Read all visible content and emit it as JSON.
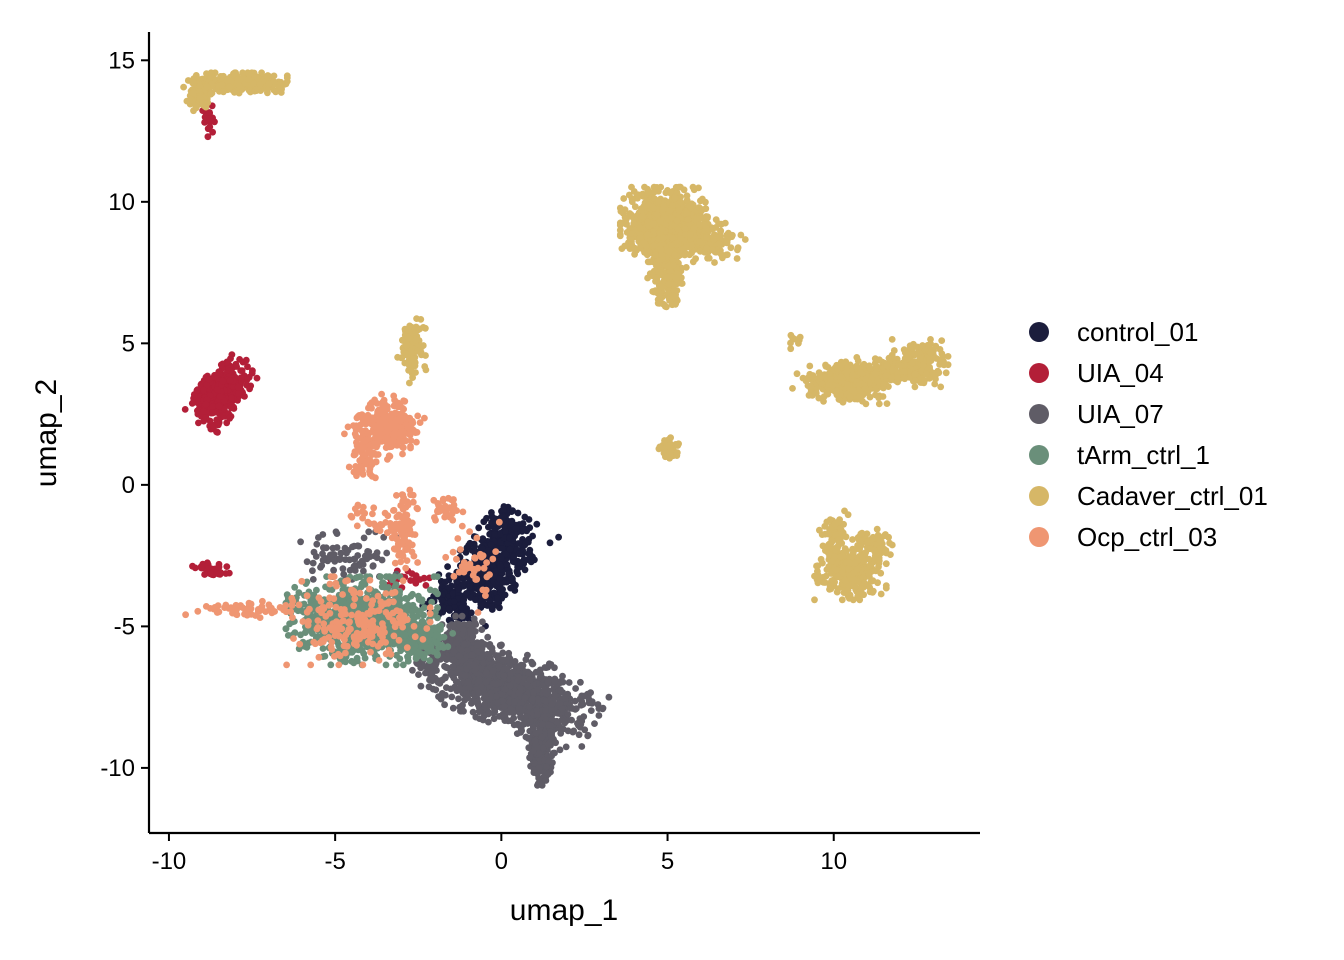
{
  "chart_data": {
    "type": "scatter",
    "title": "",
    "xlabel": "umap_1",
    "ylabel": "umap_2",
    "xlim": [
      -10.6,
      14.4
    ],
    "ylim": [
      -12.3,
      16
    ],
    "xticks": [
      -10,
      -5,
      0,
      5,
      10
    ],
    "xtick_labels": [
      "-10",
      "-5",
      "0",
      "5",
      "10"
    ],
    "yticks": [
      -10,
      -5,
      0,
      5,
      10,
      15
    ],
    "ytick_labels": [
      "-10",
      "-5",
      "0",
      "5",
      "10",
      "15"
    ],
    "grid": false,
    "legend_position": "right",
    "series": [
      {
        "name": "control_01",
        "color": "#1b1d3c",
        "clusters": [
          {
            "cx": -0.4,
            "cy": -3.0,
            "sx": 0.45,
            "sy": 0.9,
            "n": 520,
            "rot": -35
          },
          {
            "cx": 0.1,
            "cy": -1.3,
            "sx": 0.25,
            "sy": 0.3,
            "n": 70,
            "rot": 0
          },
          {
            "cx": -1.5,
            "cy": -4.0,
            "sx": 0.35,
            "sy": 0.35,
            "n": 90,
            "rot": 0
          }
        ]
      },
      {
        "name": "UIA_04",
        "color": "#b31f38",
        "clusters": [
          {
            "cx": -8.4,
            "cy": 3.3,
            "sx": 0.28,
            "sy": 0.55,
            "n": 420,
            "rot": -30
          },
          {
            "cx": -8.8,
            "cy": 12.9,
            "sx": 0.1,
            "sy": 0.25,
            "n": 25,
            "rot": 0
          },
          {
            "cx": -8.7,
            "cy": -3.0,
            "sx": 0.25,
            "sy": 0.12,
            "n": 40,
            "rot": -20
          },
          {
            "cx": -3.0,
            "cy": -3.3,
            "sx": 0.35,
            "sy": 0.2,
            "n": 25,
            "rot": 0
          }
        ]
      },
      {
        "name": "UIA_07",
        "color": "#5f5c66",
        "clusters": [
          {
            "cx": 0.2,
            "cy": -7.2,
            "sx": 1.2,
            "sy": 0.55,
            "n": 1100,
            "rot": -25
          },
          {
            "cx": 1.2,
            "cy": -9.3,
            "sx": 0.18,
            "sy": 0.55,
            "n": 220,
            "rot": 0
          },
          {
            "cx": -1.3,
            "cy": -5.6,
            "sx": 0.4,
            "sy": 0.4,
            "n": 200,
            "rot": 0
          },
          {
            "cx": -4.6,
            "cy": -2.5,
            "sx": 0.6,
            "sy": 0.35,
            "n": 80,
            "rot": 0
          }
        ]
      },
      {
        "name": "tArm_ctrl_1",
        "color": "#6a8f7a",
        "clusters": [
          {
            "cx": -4.2,
            "cy": -4.8,
            "sx": 0.95,
            "sy": 0.65,
            "n": 900,
            "rot": 0
          },
          {
            "cx": -2.4,
            "cy": -5.5,
            "sx": 0.4,
            "sy": 0.35,
            "n": 120,
            "rot": 0
          }
        ]
      },
      {
        "name": "Cadaver_ctrl_01",
        "color": "#d6b767",
        "clusters": [
          {
            "cx": 4.9,
            "cy": 9.2,
            "sx": 0.55,
            "sy": 0.55,
            "n": 950,
            "rot": 0
          },
          {
            "cx": 5.0,
            "cy": 7.4,
            "sx": 0.25,
            "sy": 0.6,
            "n": 180,
            "rot": 0
          },
          {
            "cx": 6.2,
            "cy": 8.7,
            "sx": 0.45,
            "sy": 0.3,
            "n": 150,
            "rot": -20
          },
          {
            "cx": 10.6,
            "cy": 3.7,
            "sx": 0.55,
            "sy": 0.35,
            "n": 320,
            "rot": 0
          },
          {
            "cx": 12.6,
            "cy": 4.3,
            "sx": 0.35,
            "sy": 0.35,
            "n": 180,
            "rot": 0
          },
          {
            "cx": 11.6,
            "cy": 4.0,
            "sx": 0.5,
            "sy": 0.2,
            "n": 80,
            "rot": 0
          },
          {
            "cx": 9.6,
            "cy": 3.6,
            "sx": 0.35,
            "sy": 0.2,
            "n": 50,
            "rot": 0
          },
          {
            "cx": 10.5,
            "cy": -3.1,
            "sx": 0.45,
            "sy": 0.4,
            "n": 300,
            "rot": 0
          },
          {
            "cx": 10.0,
            "cy": -2.0,
            "sx": 0.18,
            "sy": 0.45,
            "n": 90,
            "rot": 0
          },
          {
            "cx": 11.1,
            "cy": -2.0,
            "sx": 0.35,
            "sy": 0.2,
            "n": 60,
            "rot": -30
          },
          {
            "cx": -8.0,
            "cy": 14.2,
            "sx": 0.65,
            "sy": 0.15,
            "n": 360,
            "rot": 0
          },
          {
            "cx": -9.1,
            "cy": 13.7,
            "sx": 0.15,
            "sy": 0.2,
            "n": 60,
            "rot": 0
          },
          {
            "cx": -2.7,
            "cy": 4.8,
            "sx": 0.18,
            "sy": 0.5,
            "n": 110,
            "rot": 0
          },
          {
            "cx": 5.1,
            "cy": 1.3,
            "sx": 0.15,
            "sy": 0.2,
            "n": 40,
            "rot": 0
          },
          {
            "cx": 8.8,
            "cy": 5.1,
            "sx": 0.12,
            "sy": 0.12,
            "n": 10,
            "rot": 0
          }
        ]
      },
      {
        "name": "Ocp_ctrl_03",
        "color": "#ef9672",
        "clusters": [
          {
            "cx": -3.4,
            "cy": 2.0,
            "sx": 0.4,
            "sy": 0.45,
            "n": 320,
            "rot": -40
          },
          {
            "cx": -4.2,
            "cy": 0.9,
            "sx": 0.18,
            "sy": 0.45,
            "n": 60,
            "rot": 0
          },
          {
            "cx": -3.0,
            "cy": -1.5,
            "sx": 0.2,
            "sy": 0.6,
            "n": 90,
            "rot": 0
          },
          {
            "cx": -4.3,
            "cy": -4.8,
            "sx": 0.9,
            "sy": 0.65,
            "n": 200,
            "rot": 0
          },
          {
            "cx": -7.5,
            "cy": -4.4,
            "sx": 0.9,
            "sy": 0.12,
            "n": 60,
            "rot": 0
          },
          {
            "cx": -1.7,
            "cy": -0.8,
            "sx": 0.25,
            "sy": 0.3,
            "n": 30,
            "rot": 0
          },
          {
            "cx": -0.8,
            "cy": -3.0,
            "sx": 0.45,
            "sy": 0.7,
            "n": 40,
            "rot": 0
          },
          {
            "cx": -4.0,
            "cy": -1.2,
            "sx": 0.4,
            "sy": 0.3,
            "n": 25,
            "rot": 0
          }
        ]
      }
    ]
  }
}
